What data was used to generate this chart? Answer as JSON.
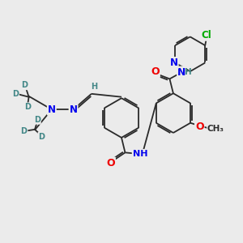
{
  "bg_color": "#ebebeb",
  "bond_color": "#2a2a2a",
  "bond_width": 1.3,
  "atom_colors": {
    "N": "#0000ee",
    "O": "#ee0000",
    "Cl": "#00aa00",
    "D": "#448888",
    "H": "#448888",
    "C": "#2a2a2a"
  },
  "figsize": [
    3.0,
    3.0
  ],
  "dpi": 100
}
